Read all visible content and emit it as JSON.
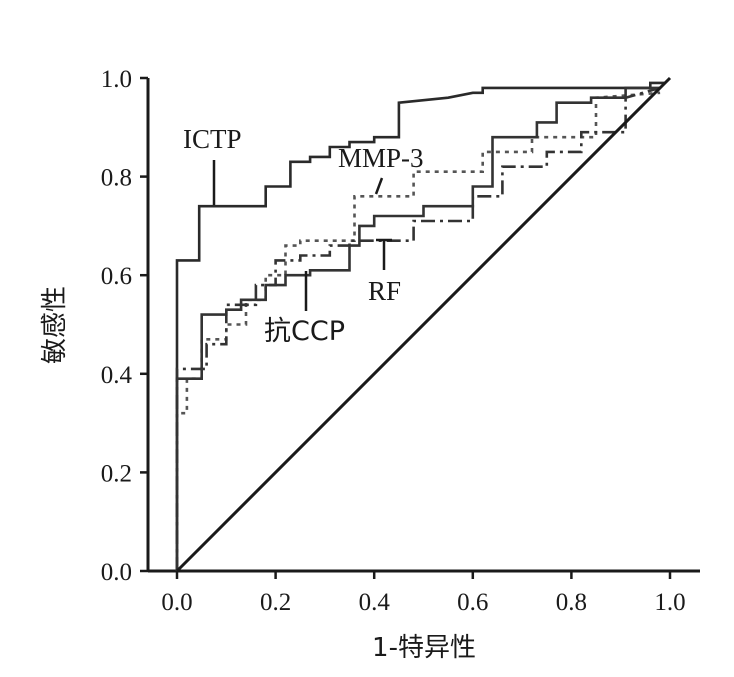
{
  "chart_data": {
    "type": "line",
    "title": "",
    "xlabel": "1-特异性",
    "ylabel": "敏感性",
    "xlim": [
      0,
      1
    ],
    "ylim": [
      0,
      1
    ],
    "x_ticks": [
      "0.0",
      "0.2",
      "0.4",
      "0.6",
      "0.8",
      "1.0"
    ],
    "y_ticks": [
      "0.0",
      "0.2",
      "0.4",
      "0.6",
      "0.8",
      "1.0"
    ],
    "grid": false,
    "legend": "none",
    "series": [
      {
        "name": "ICTP",
        "style": "solid",
        "color": "#2a2a2a",
        "points": [
          [
            0,
            0
          ],
          [
            0,
            0.63
          ],
          [
            0.045,
            0.63
          ],
          [
            0.045,
            0.74
          ],
          [
            0.18,
            0.74
          ],
          [
            0.18,
            0.78
          ],
          [
            0.23,
            0.78
          ],
          [
            0.23,
            0.83
          ],
          [
            0.27,
            0.83
          ],
          [
            0.27,
            0.84
          ],
          [
            0.31,
            0.84
          ],
          [
            0.31,
            0.86
          ],
          [
            0.35,
            0.86
          ],
          [
            0.35,
            0.87
          ],
          [
            0.4,
            0.87
          ],
          [
            0.4,
            0.88
          ],
          [
            0.45,
            0.88
          ],
          [
            0.45,
            0.95
          ],
          [
            0.55,
            0.96
          ],
          [
            0.6,
            0.97
          ],
          [
            0.62,
            0.97
          ],
          [
            0.62,
            0.98
          ],
          [
            0.81,
            0.98
          ],
          [
            0.96,
            0.98
          ],
          [
            0.96,
            0.99
          ],
          [
            0.99,
            0.99
          ]
        ]
      },
      {
        "name": "MMP-3",
        "style": "dotted",
        "color": "#555555",
        "points": [
          [
            0,
            0
          ],
          [
            0,
            0.32
          ],
          [
            0.02,
            0.32
          ],
          [
            0.02,
            0.39
          ],
          [
            0.05,
            0.39
          ],
          [
            0.05,
            0.47
          ],
          [
            0.1,
            0.47
          ],
          [
            0.1,
            0.5
          ],
          [
            0.14,
            0.5
          ],
          [
            0.14,
            0.55
          ],
          [
            0.18,
            0.55
          ],
          [
            0.18,
            0.6
          ],
          [
            0.22,
            0.6
          ],
          [
            0.22,
            0.66
          ],
          [
            0.25,
            0.66
          ],
          [
            0.25,
            0.67
          ],
          [
            0.36,
            0.67
          ],
          [
            0.36,
            0.76
          ],
          [
            0.48,
            0.76
          ],
          [
            0.48,
            0.81
          ],
          [
            0.62,
            0.81
          ],
          [
            0.62,
            0.85
          ],
          [
            0.72,
            0.85
          ],
          [
            0.72,
            0.88
          ],
          [
            0.85,
            0.88
          ],
          [
            0.85,
            0.96
          ],
          [
            0.98,
            0.97
          ]
        ]
      },
      {
        "name": "RF",
        "style": "dashdot",
        "color": "#333333",
        "points": [
          [
            0,
            0
          ],
          [
            0,
            0.41
          ],
          [
            0.06,
            0.41
          ],
          [
            0.06,
            0.46
          ],
          [
            0.1,
            0.46
          ],
          [
            0.1,
            0.54
          ],
          [
            0.16,
            0.54
          ],
          [
            0.16,
            0.58
          ],
          [
            0.2,
            0.58
          ],
          [
            0.2,
            0.63
          ],
          [
            0.25,
            0.63
          ],
          [
            0.25,
            0.64
          ],
          [
            0.31,
            0.64
          ],
          [
            0.31,
            0.66
          ],
          [
            0.35,
            0.66
          ],
          [
            0.35,
            0.67
          ],
          [
            0.48,
            0.67
          ],
          [
            0.48,
            0.71
          ],
          [
            0.6,
            0.71
          ],
          [
            0.6,
            0.76
          ],
          [
            0.66,
            0.76
          ],
          [
            0.66,
            0.82
          ],
          [
            0.75,
            0.82
          ],
          [
            0.75,
            0.85
          ],
          [
            0.82,
            0.85
          ],
          [
            0.82,
            0.89
          ],
          [
            0.91,
            0.89
          ],
          [
            0.91,
            0.96
          ],
          [
            0.98,
            0.98
          ]
        ]
      },
      {
        "name": "抗CCP",
        "style": "solid",
        "color": "#333333",
        "points": [
          [
            0,
            0
          ],
          [
            0,
            0.39
          ],
          [
            0.05,
            0.39
          ],
          [
            0.05,
            0.52
          ],
          [
            0.1,
            0.52
          ],
          [
            0.1,
            0.53
          ],
          [
            0.13,
            0.53
          ],
          [
            0.13,
            0.55
          ],
          [
            0.18,
            0.55
          ],
          [
            0.18,
            0.58
          ],
          [
            0.22,
            0.58
          ],
          [
            0.22,
            0.6
          ],
          [
            0.27,
            0.6
          ],
          [
            0.27,
            0.61
          ],
          [
            0.35,
            0.61
          ],
          [
            0.35,
            0.66
          ],
          [
            0.37,
            0.66
          ],
          [
            0.37,
            0.7
          ],
          [
            0.4,
            0.7
          ],
          [
            0.4,
            0.72
          ],
          [
            0.5,
            0.72
          ],
          [
            0.5,
            0.74
          ],
          [
            0.6,
            0.74
          ],
          [
            0.6,
            0.78
          ],
          [
            0.64,
            0.78
          ],
          [
            0.64,
            0.88
          ],
          [
            0.73,
            0.88
          ],
          [
            0.73,
            0.91
          ],
          [
            0.77,
            0.91
          ],
          [
            0.77,
            0.95
          ],
          [
            0.84,
            0.95
          ],
          [
            0.84,
            0.96
          ],
          [
            0.91,
            0.96
          ],
          [
            0.91,
            0.98
          ],
          [
            0.98,
            0.98
          ]
        ]
      },
      {
        "name": "",
        "style": "solid",
        "color": "#1a1a1a",
        "points": [
          [
            0,
            0
          ],
          [
            1,
            1
          ]
        ]
      }
    ],
    "annotations": [
      {
        "text": "ICTP",
        "series": "ICTP",
        "at": [
          0.08,
          0.74
        ]
      },
      {
        "text": "MMP-3",
        "series": "MMP-3",
        "at": [
          0.41,
          0.76
        ]
      },
      {
        "text": "RF",
        "series": "RF",
        "at": [
          0.42,
          0.67
        ]
      },
      {
        "text": "抗CCP",
        "series": "抗CCP",
        "at": [
          0.27,
          0.6
        ]
      }
    ]
  }
}
